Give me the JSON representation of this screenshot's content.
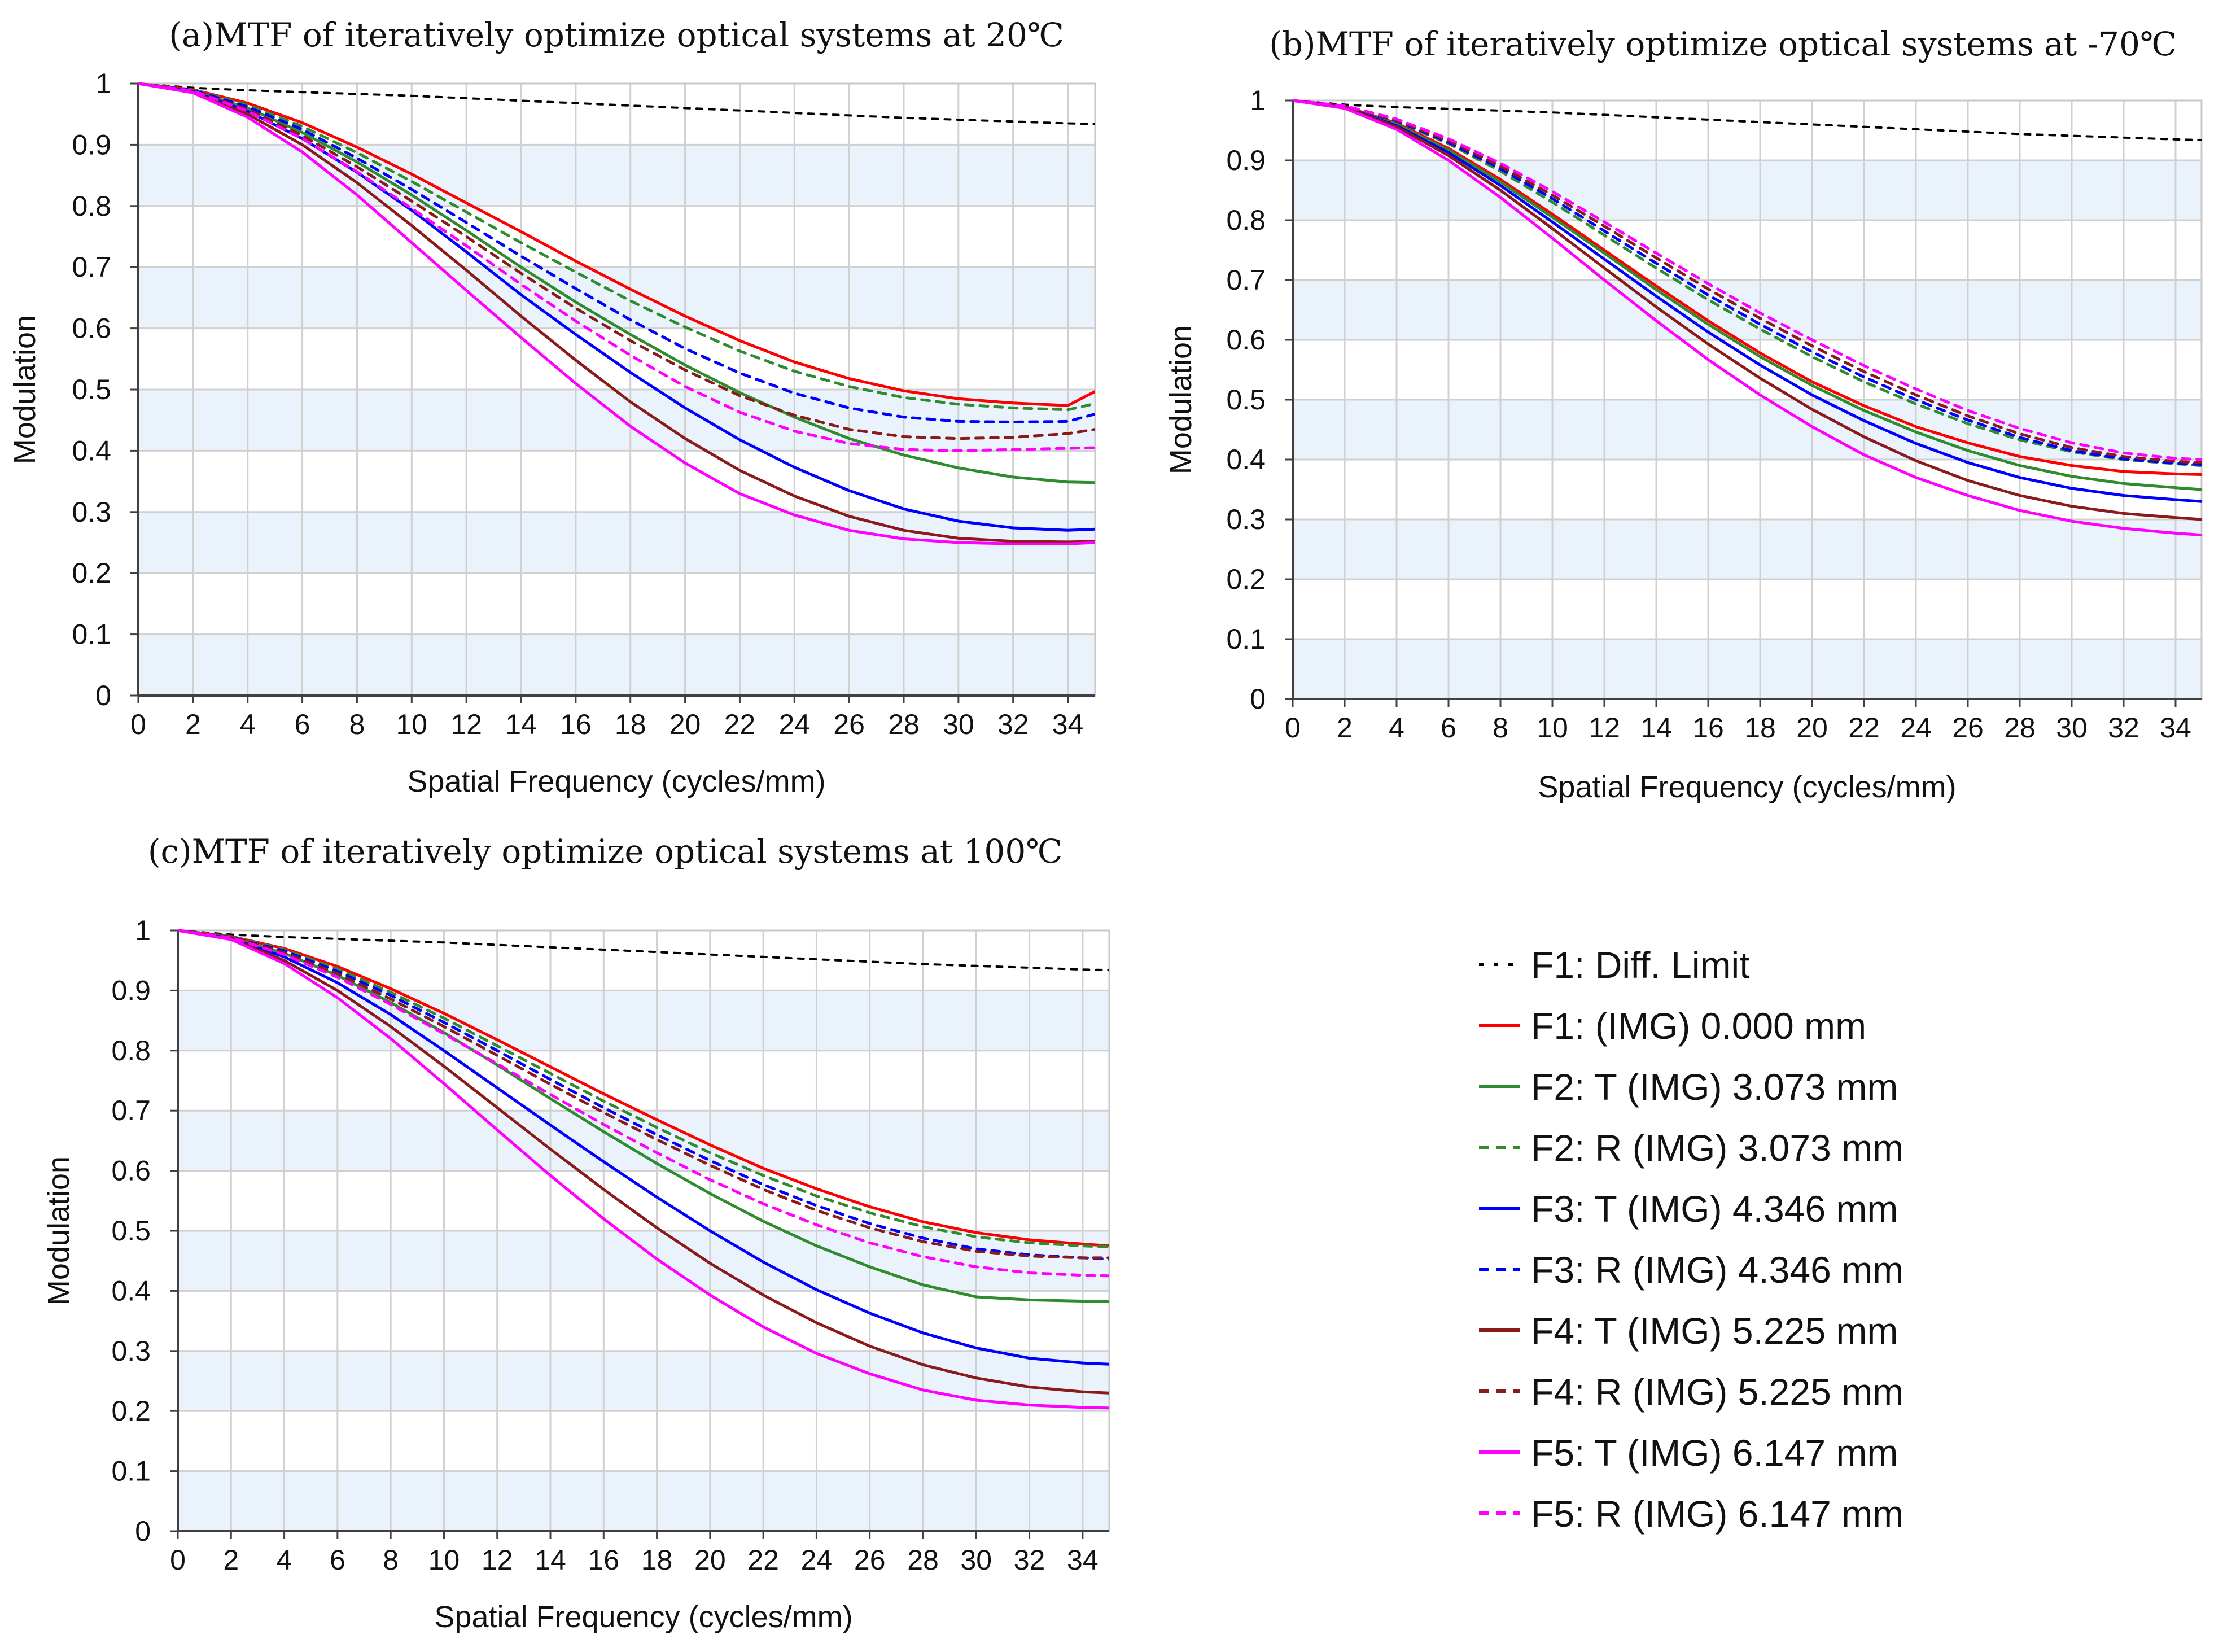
{
  "chart_data": [
    {
      "type": "line",
      "title": "(a)MTF of iteratively optimize optical systems at 20℃",
      "xlabel": "Spatial Frequency (cycles/mm)",
      "ylabel": "Modulation",
      "xlim": [
        0,
        35
      ],
      "ylim": [
        0,
        1
      ],
      "x_ticks": [
        0,
        2,
        4,
        6,
        8,
        10,
        12,
        14,
        16,
        18,
        20,
        22,
        24,
        26,
        28,
        30,
        32,
        34
      ],
      "y_ticks": [
        0,
        0.1,
        0.2,
        0.3,
        0.4,
        0.5,
        0.6,
        0.7,
        0.8,
        0.9,
        1
      ],
      "grid": true,
      "x": [
        0,
        2,
        4,
        6,
        8,
        10,
        12,
        14,
        16,
        18,
        20,
        22,
        24,
        26,
        28,
        30,
        32,
        34,
        35
      ],
      "series": [
        {
          "name": "F1: Diff. Limit",
          "values": [
            1.0,
            0.993,
            0.989,
            0.986,
            0.983,
            0.98,
            0.976,
            0.972,
            0.968,
            0.964,
            0.96,
            0.956,
            0.952,
            0.948,
            0.944,
            0.941,
            0.938,
            0.935,
            0.934
          ]
        },
        {
          "name": "F1: (IMG) 0.000 mm",
          "values": [
            1.0,
            0.99,
            0.968,
            0.936,
            0.896,
            0.852,
            0.805,
            0.758,
            0.71,
            0.664,
            0.62,
            0.58,
            0.545,
            0.518,
            0.498,
            0.485,
            0.478,
            0.474,
            0.497
          ]
        },
        {
          "name": "F2: T (IMG) 3.073 mm",
          "values": [
            1.0,
            0.988,
            0.96,
            0.92,
            0.872,
            0.818,
            0.76,
            0.7,
            0.643,
            0.59,
            0.54,
            0.495,
            0.455,
            0.42,
            0.393,
            0.372,
            0.357,
            0.349,
            0.348
          ]
        },
        {
          "name": "F2: R (IMG) 3.073 mm",
          "values": [
            1.0,
            0.99,
            0.965,
            0.93,
            0.887,
            0.84,
            0.79,
            0.74,
            0.692,
            0.645,
            0.602,
            0.563,
            0.53,
            0.505,
            0.487,
            0.476,
            0.47,
            0.467,
            0.477
          ]
        },
        {
          "name": "F3: T (IMG) 4.346 mm",
          "values": [
            1.0,
            0.987,
            0.955,
            0.91,
            0.855,
            0.793,
            0.725,
            0.655,
            0.59,
            0.528,
            0.47,
            0.418,
            0.373,
            0.335,
            0.305,
            0.285,
            0.274,
            0.27,
            0.272
          ]
        },
        {
          "name": "F3: R (IMG) 4.346 mm",
          "values": [
            1.0,
            0.989,
            0.962,
            0.925,
            0.878,
            0.827,
            0.773,
            0.718,
            0.665,
            0.614,
            0.567,
            0.527,
            0.494,
            0.47,
            0.455,
            0.448,
            0.447,
            0.448,
            0.46
          ]
        },
        {
          "name": "F4: T (IMG) 5.225 mm",
          "values": [
            1.0,
            0.986,
            0.95,
            0.9,
            0.838,
            0.768,
            0.695,
            0.62,
            0.548,
            0.48,
            0.42,
            0.368,
            0.326,
            0.293,
            0.27,
            0.257,
            0.252,
            0.251,
            0.252
          ]
        },
        {
          "name": "F4: R (IMG) 5.225 mm",
          "values": [
            1.0,
            0.988,
            0.958,
            0.915,
            0.864,
            0.808,
            0.75,
            0.69,
            0.633,
            0.58,
            0.532,
            0.49,
            0.458,
            0.435,
            0.423,
            0.42,
            0.422,
            0.428,
            0.435
          ]
        },
        {
          "name": "F5: T (IMG) 6.147 mm",
          "values": [
            1.0,
            0.985,
            0.945,
            0.888,
            0.818,
            0.74,
            0.662,
            0.585,
            0.51,
            0.44,
            0.38,
            0.33,
            0.295,
            0.27,
            0.256,
            0.25,
            0.248,
            0.248,
            0.25
          ]
        },
        {
          "name": "F5: R (IMG) 6.147 mm",
          "values": [
            1.0,
            0.988,
            0.955,
            0.91,
            0.856,
            0.796,
            0.735,
            0.672,
            0.612,
            0.556,
            0.505,
            0.463,
            0.432,
            0.412,
            0.402,
            0.4,
            0.402,
            0.404,
            0.405
          ]
        }
      ]
    },
    {
      "type": "line",
      "title": "(b)MTF of iteratively optimize optical systems at -70℃",
      "xlabel": "Spatial Frequency (cycles/mm)",
      "ylabel": "Modulation",
      "xlim": [
        0,
        35
      ],
      "ylim": [
        0,
        1
      ],
      "x_ticks": [
        0,
        2,
        4,
        6,
        8,
        10,
        12,
        14,
        16,
        18,
        20,
        22,
        24,
        26,
        28,
        30,
        32,
        34
      ],
      "y_ticks": [
        0,
        0.1,
        0.2,
        0.3,
        0.4,
        0.5,
        0.6,
        0.7,
        0.8,
        0.9,
        1
      ],
      "grid": true,
      "x": [
        0,
        2,
        4,
        6,
        8,
        10,
        12,
        14,
        16,
        18,
        20,
        22,
        24,
        26,
        28,
        30,
        32,
        34,
        35
      ],
      "series": [
        {
          "name": "F1: Diff. Limit",
          "values": [
            1.0,
            0.993,
            0.989,
            0.986,
            0.983,
            0.98,
            0.976,
            0.972,
            0.968,
            0.964,
            0.96,
            0.956,
            0.952,
            0.948,
            0.944,
            0.941,
            0.938,
            0.935,
            0.934
          ]
        },
        {
          "name": "F1: (IMG) 0.000 mm",
          "values": [
            1.0,
            0.99,
            0.962,
            0.92,
            0.868,
            0.81,
            0.75,
            0.69,
            0.632,
            0.578,
            0.53,
            0.49,
            0.455,
            0.428,
            0.405,
            0.39,
            0.38,
            0.376,
            0.375
          ]
        },
        {
          "name": "F2: T (IMG) 3.073 mm",
          "values": [
            1.0,
            0.989,
            0.96,
            0.917,
            0.864,
            0.805,
            0.745,
            0.684,
            0.626,
            0.572,
            0.524,
            0.482,
            0.446,
            0.415,
            0.39,
            0.372,
            0.36,
            0.353,
            0.35
          ]
        },
        {
          "name": "F2: R (IMG) 3.073 mm",
          "values": [
            1.0,
            0.99,
            0.965,
            0.928,
            0.882,
            0.83,
            0.775,
            0.72,
            0.667,
            0.618,
            0.572,
            0.53,
            0.493,
            0.46,
            0.433,
            0.413,
            0.4,
            0.393,
            0.39
          ]
        },
        {
          "name": "F3: T (IMG) 4.346 mm",
          "values": [
            1.0,
            0.989,
            0.958,
            0.913,
            0.858,
            0.797,
            0.735,
            0.673,
            0.613,
            0.558,
            0.508,
            0.465,
            0.427,
            0.395,
            0.37,
            0.352,
            0.34,
            0.333,
            0.33
          ]
        },
        {
          "name": "F3: R (IMG) 4.346 mm",
          "values": [
            1.0,
            0.99,
            0.966,
            0.93,
            0.886,
            0.836,
            0.782,
            0.728,
            0.675,
            0.626,
            0.58,
            0.538,
            0.5,
            0.466,
            0.437,
            0.415,
            0.401,
            0.394,
            0.392
          ]
        },
        {
          "name": "F4: T (IMG) 5.225 mm",
          "values": [
            1.0,
            0.988,
            0.956,
            0.908,
            0.85,
            0.786,
            0.72,
            0.655,
            0.593,
            0.536,
            0.484,
            0.438,
            0.398,
            0.365,
            0.34,
            0.322,
            0.31,
            0.303,
            0.3
          ]
        },
        {
          "name": "F4: R (IMG) 5.225 mm",
          "values": [
            1.0,
            0.99,
            0.967,
            0.933,
            0.89,
            0.842,
            0.79,
            0.737,
            0.685,
            0.636,
            0.59,
            0.547,
            0.508,
            0.473,
            0.443,
            0.42,
            0.405,
            0.397,
            0.395
          ]
        },
        {
          "name": "F5: T (IMG) 6.147 mm",
          "values": [
            1.0,
            0.987,
            0.952,
            0.9,
            0.838,
            0.77,
            0.7,
            0.632,
            0.567,
            0.508,
            0.455,
            0.408,
            0.37,
            0.34,
            0.315,
            0.297,
            0.285,
            0.277,
            0.274
          ]
        },
        {
          "name": "F5: R (IMG) 6.147 mm",
          "values": [
            1.0,
            0.991,
            0.969,
            0.936,
            0.895,
            0.848,
            0.797,
            0.745,
            0.694,
            0.645,
            0.6,
            0.557,
            0.518,
            0.482,
            0.452,
            0.428,
            0.411,
            0.402,
            0.4
          ]
        }
      ]
    },
    {
      "type": "line",
      "title": "(c)MTF of iteratively optimize optical systems at 100℃",
      "xlabel": "Spatial Frequency (cycles/mm)",
      "ylabel": "Modulation",
      "xlim": [
        0,
        35
      ],
      "ylim": [
        0,
        1
      ],
      "x_ticks": [
        0,
        2,
        4,
        6,
        8,
        10,
        12,
        14,
        16,
        18,
        20,
        22,
        24,
        26,
        28,
        30,
        32,
        34
      ],
      "y_ticks": [
        0,
        0.1,
        0.2,
        0.3,
        0.4,
        0.5,
        0.6,
        0.7,
        0.8,
        0.9,
        1
      ],
      "grid": true,
      "x": [
        0,
        2,
        4,
        6,
        8,
        10,
        12,
        14,
        16,
        18,
        20,
        22,
        24,
        26,
        28,
        30,
        32,
        34,
        35
      ],
      "series": [
        {
          "name": "F1: Diff. Limit",
          "values": [
            1.0,
            0.993,
            0.989,
            0.986,
            0.983,
            0.98,
            0.976,
            0.972,
            0.968,
            0.964,
            0.96,
            0.956,
            0.952,
            0.948,
            0.944,
            0.941,
            0.938,
            0.935,
            0.934
          ]
        },
        {
          "name": "F1: (IMG) 0.000 mm",
          "values": [
            1.0,
            0.99,
            0.97,
            0.94,
            0.903,
            0.862,
            0.818,
            0.773,
            0.728,
            0.685,
            0.643,
            0.604,
            0.57,
            0.54,
            0.515,
            0.497,
            0.485,
            0.478,
            0.475
          ]
        },
        {
          "name": "F2: T (IMG) 3.073 mm",
          "values": [
            1.0,
            0.988,
            0.962,
            0.925,
            0.88,
            0.83,
            0.776,
            0.72,
            0.665,
            0.612,
            0.562,
            0.516,
            0.475,
            0.44,
            0.41,
            0.39,
            0.385,
            0.383,
            0.382
          ]
        },
        {
          "name": "F2: R (IMG) 3.073 mm",
          "values": [
            1.0,
            0.99,
            0.968,
            0.936,
            0.897,
            0.854,
            0.808,
            0.762,
            0.716,
            0.672,
            0.63,
            0.592,
            0.558,
            0.53,
            0.507,
            0.49,
            0.48,
            0.475,
            0.473
          ]
        },
        {
          "name": "F3: T (IMG) 4.346 mm",
          "values": [
            1.0,
            0.987,
            0.956,
            0.913,
            0.86,
            0.8,
            0.738,
            0.676,
            0.615,
            0.556,
            0.5,
            0.448,
            0.402,
            0.363,
            0.33,
            0.305,
            0.288,
            0.28,
            0.278
          ]
        },
        {
          "name": "F3: R (IMG) 4.346 mm",
          "values": [
            1.0,
            0.989,
            0.966,
            0.932,
            0.892,
            0.847,
            0.8,
            0.752,
            0.705,
            0.66,
            0.617,
            0.577,
            0.542,
            0.512,
            0.488,
            0.47,
            0.46,
            0.455,
            0.453
          ]
        },
        {
          "name": "F4: T (IMG) 5.225 mm",
          "values": [
            1.0,
            0.986,
            0.95,
            0.9,
            0.84,
            0.774,
            0.705,
            0.636,
            0.569,
            0.505,
            0.446,
            0.393,
            0.347,
            0.308,
            0.277,
            0.255,
            0.24,
            0.232,
            0.23
          ]
        },
        {
          "name": "F4: R (IMG) 5.225 mm",
          "values": [
            1.0,
            0.989,
            0.963,
            0.928,
            0.886,
            0.84,
            0.792,
            0.744,
            0.697,
            0.652,
            0.609,
            0.569,
            0.534,
            0.505,
            0.482,
            0.466,
            0.458,
            0.455,
            0.455
          ]
        },
        {
          "name": "F5: T (IMG) 6.147 mm",
          "values": [
            1.0,
            0.985,
            0.945,
            0.888,
            0.82,
            0.745,
            0.668,
            0.592,
            0.52,
            0.453,
            0.393,
            0.34,
            0.296,
            0.262,
            0.235,
            0.218,
            0.21,
            0.206,
            0.205
          ]
        },
        {
          "name": "F5: R (IMG) 6.147 mm",
          "values": [
            1.0,
            0.988,
            0.96,
            0.922,
            0.877,
            0.828,
            0.778,
            0.727,
            0.677,
            0.63,
            0.585,
            0.545,
            0.51,
            0.48,
            0.457,
            0.44,
            0.43,
            0.426,
            0.425
          ]
        }
      ]
    }
  ],
  "legend": {
    "items": [
      {
        "label": "F1: Diff. Limit",
        "color": "#000000",
        "dashed": true
      },
      {
        "label": "F1: (IMG) 0.000 mm",
        "color": "#ff0000",
        "dashed": false
      },
      {
        "label": "F2: T (IMG) 3.073 mm",
        "color": "#2e8b2e",
        "dashed": false
      },
      {
        "label": "F2: R (IMG) 3.073 mm",
        "color": "#2e8b2e",
        "dashed": true
      },
      {
        "label": "F3: T (IMG) 4.346 mm",
        "color": "#0000ff",
        "dashed": false
      },
      {
        "label": "F3: R (IMG) 4.346 mm",
        "color": "#0000ff",
        "dashed": true
      },
      {
        "label": "F4: T (IMG) 5.225 mm",
        "color": "#8b1a1a",
        "dashed": false
      },
      {
        "label": "F4: R (IMG) 5.225 mm",
        "color": "#8b1a1a",
        "dashed": true
      },
      {
        "label": "F5: T (IMG) 6.147 mm",
        "color": "#ff00ff",
        "dashed": false
      },
      {
        "label": "F5: R (IMG) 6.147 mm",
        "color": "#ff00ff",
        "dashed": true
      }
    ]
  },
  "colors": {
    "band": "#eaf3fb",
    "grid": "#d0d0d0",
    "axis": "#404040"
  }
}
